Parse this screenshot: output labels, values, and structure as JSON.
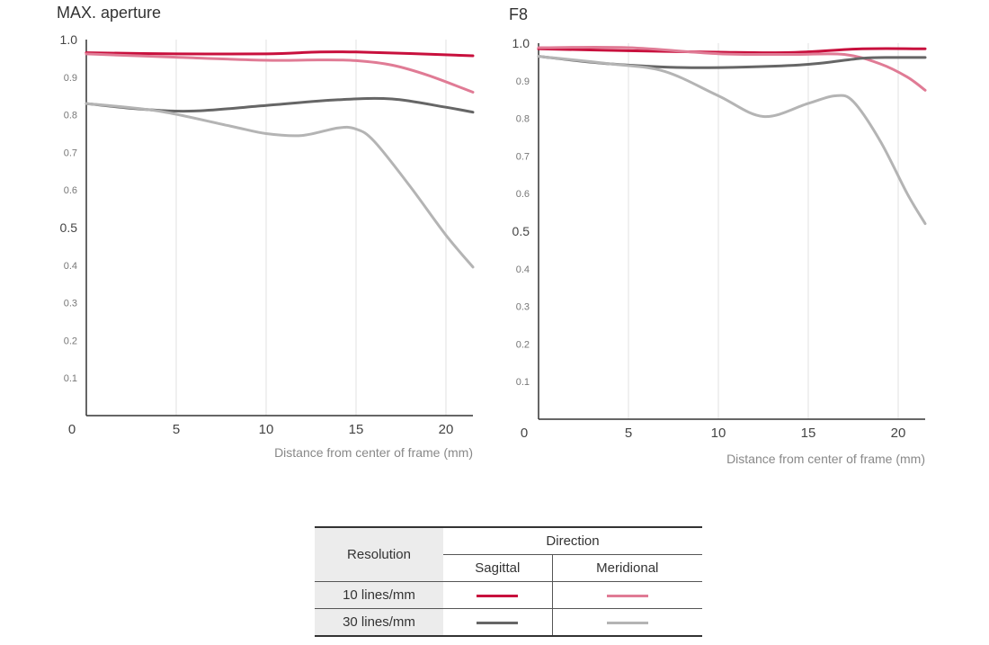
{
  "chart_data": [
    {
      "type": "line",
      "title": "MAX. aperture",
      "xlabel": "Distance from center of frame (mm)",
      "ylabel": "",
      "xlim": [
        0,
        21.5
      ],
      "ylim": [
        0,
        1.0
      ],
      "x_ticks": [
        "5",
        "10",
        "15",
        "20"
      ],
      "x_tick_values": [
        5,
        10,
        15,
        20
      ],
      "y_ticks_large": [
        "1.0",
        "0.5",
        "0"
      ],
      "y_ticks_small": [
        "0.9",
        "0.8",
        "0.7",
        "0.6",
        "0.4",
        "0.3",
        "0.2",
        "0.1"
      ],
      "grid": true,
      "series": [
        {
          "color": "#c8103d",
          "x": [
            0,
            5,
            10,
            13,
            15,
            18,
            21.5
          ],
          "y": [
            0.965,
            0.962,
            0.962,
            0.967,
            0.967,
            0.963,
            0.957
          ]
        },
        {
          "color": "#e07b95",
          "x": [
            0,
            5,
            10,
            13,
            15,
            17,
            19,
            21.5
          ],
          "y": [
            0.962,
            0.953,
            0.945,
            0.946,
            0.944,
            0.932,
            0.905,
            0.86
          ]
        },
        {
          "color": "#666666",
          "x": [
            0,
            3,
            6,
            10,
            14,
            17,
            20,
            21.5
          ],
          "y": [
            0.83,
            0.815,
            0.81,
            0.825,
            0.84,
            0.842,
            0.82,
            0.807
          ]
        },
        {
          "color": "#b4b4b4",
          "x": [
            0,
            4,
            8,
            10,
            12,
            14,
            15,
            16,
            18,
            20,
            21.5
          ],
          "y": [
            0.83,
            0.81,
            0.77,
            0.75,
            0.745,
            0.765,
            0.762,
            0.73,
            0.61,
            0.48,
            0.395
          ]
        }
      ]
    },
    {
      "type": "line",
      "title": "F8",
      "xlabel": "Distance from center of frame (mm)",
      "ylabel": "",
      "xlim": [
        0,
        21.5
      ],
      "ylim": [
        0,
        1.0
      ],
      "x_ticks": [
        "5",
        "10",
        "15",
        "20"
      ],
      "x_tick_values": [
        5,
        10,
        15,
        20
      ],
      "y_ticks_large": [
        "1.0",
        "0.5",
        "0"
      ],
      "y_ticks_small": [
        "0.9",
        "0.8",
        "0.7",
        "0.6",
        "0.4",
        "0.3",
        "0.2",
        "0.1"
      ],
      "grid": true,
      "series": [
        {
          "color": "#c8103d",
          "x": [
            0,
            5,
            10,
            14,
            18,
            21.5
          ],
          "y": [
            0.985,
            0.98,
            0.976,
            0.975,
            0.985,
            0.985
          ]
        },
        {
          "color": "#e07b95",
          "x": [
            0,
            5,
            10,
            14,
            17,
            19,
            20.5,
            21.5
          ],
          "y": [
            0.988,
            0.988,
            0.972,
            0.97,
            0.97,
            0.945,
            0.91,
            0.875
          ]
        },
        {
          "color": "#666666",
          "x": [
            0,
            4,
            8.5,
            14.5,
            18,
            20,
            21.5
          ],
          "y": [
            0.965,
            0.945,
            0.935,
            0.942,
            0.96,
            0.962,
            0.962
          ]
        },
        {
          "color": "#b4b4b4",
          "x": [
            0,
            4,
            7,
            10,
            12.5,
            15,
            16.5,
            17.5,
            19,
            20.5,
            21.5
          ],
          "y": [
            0.965,
            0.945,
            0.925,
            0.86,
            0.805,
            0.84,
            0.86,
            0.845,
            0.74,
            0.6,
            0.52
          ]
        }
      ]
    }
  ],
  "legend": {
    "resolution_label": "Resolution",
    "direction_label": "Direction",
    "sagittal_label": "Sagittal",
    "meridional_label": "Meridional",
    "rows": [
      {
        "label": "10 lines/mm",
        "sagittal_color": "#c8103d",
        "meridional_color": "#e07b95"
      },
      {
        "label": "30 lines/mm",
        "sagittal_color": "#666666",
        "meridional_color": "#b4b4b4"
      }
    ]
  }
}
